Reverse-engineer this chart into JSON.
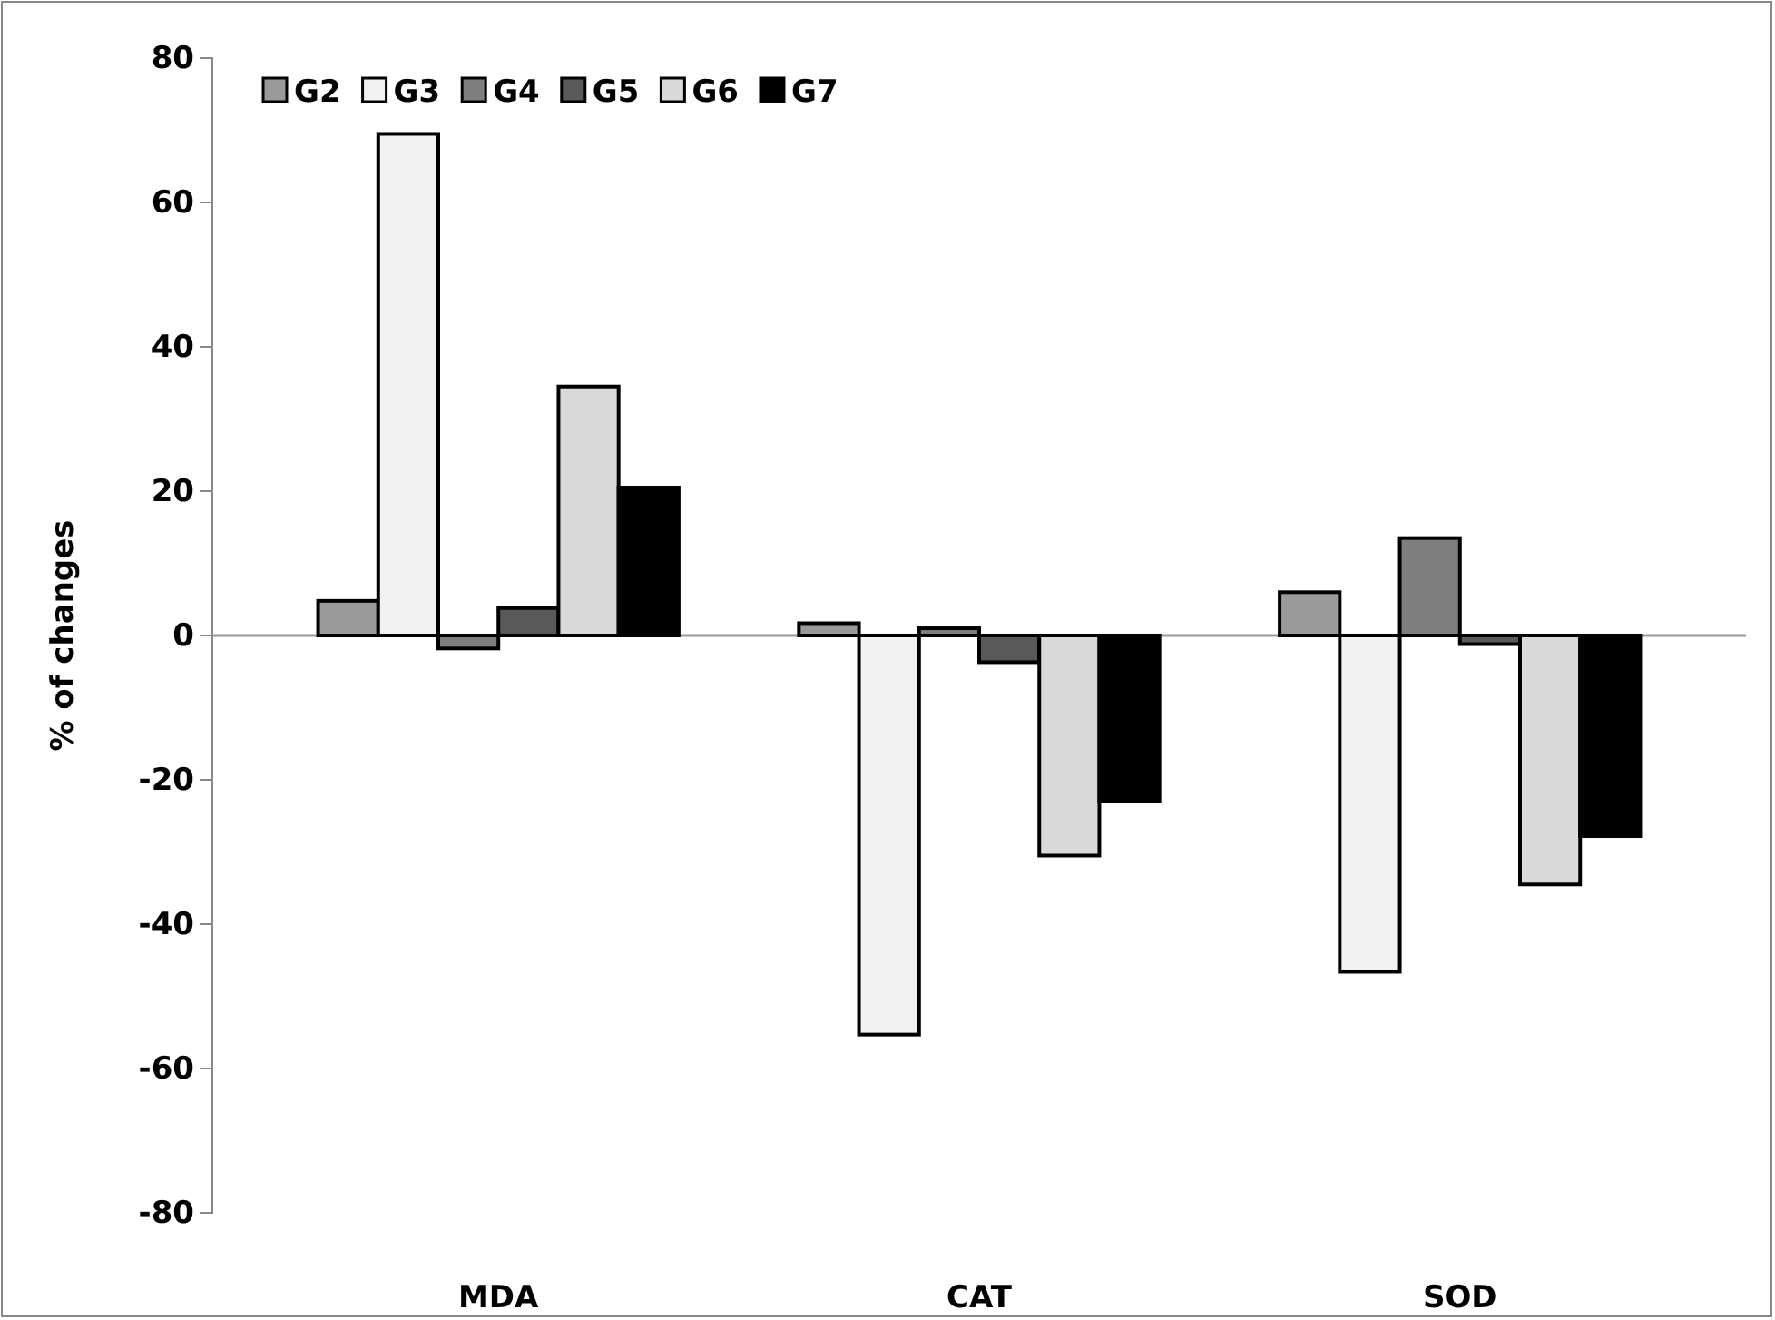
{
  "chart_data": {
    "type": "bar",
    "ylabel": "% of changes",
    "categories": [
      "MDA",
      "CAT",
      "SOD"
    ],
    "series": [
      {
        "name": "G2",
        "color": "#9a9a9a",
        "values": [
          4.8,
          1.7,
          6.0
        ]
      },
      {
        "name": "G3",
        "color": "#f2f2f2",
        "values": [
          69.5,
          -55.3,
          -46.6
        ]
      },
      {
        "name": "G4",
        "color": "#7f7f7f",
        "values": [
          -1.8,
          1.0,
          13.5
        ]
      },
      {
        "name": "G5",
        "color": "#595959",
        "values": [
          3.8,
          -3.7,
          -1.2
        ]
      },
      {
        "name": "G6",
        "color": "#d9d9d9",
        "values": [
          34.5,
          -30.5,
          -34.5
        ]
      },
      {
        "name": "G7",
        "color": "#000000",
        "values": [
          20.5,
          -22.9,
          -27.8
        ]
      }
    ],
    "ylim": [
      -80,
      80
    ],
    "yticks": [
      -80,
      -60,
      -40,
      -20,
      0,
      20,
      40,
      60,
      80
    ],
    "ref_lines": [
      {
        "axis": "y",
        "value": 0,
        "color": "#999999"
      }
    ],
    "legend": "top"
  }
}
